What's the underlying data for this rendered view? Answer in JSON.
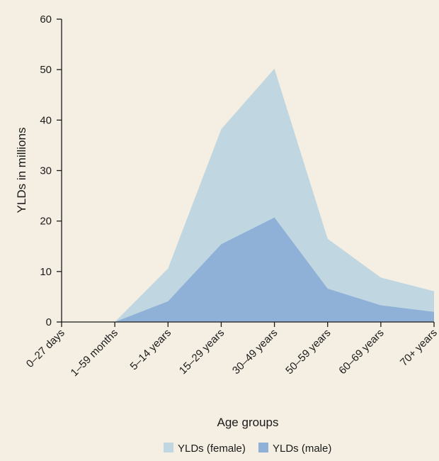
{
  "chart_data": {
    "type": "area",
    "stacked": false,
    "xlabel": "Age groups",
    "ylabel": "YLDs in millions",
    "ylim": [
      0,
      60
    ],
    "yticks": [
      0,
      10,
      20,
      30,
      40,
      50,
      60
    ],
    "categories": [
      "0–27 days",
      "1–59 months",
      "5–14 years",
      "15–29 years",
      "30–49 years",
      "50–59 years",
      "60–69 years",
      "70+ years"
    ],
    "series": [
      {
        "name": "YLDs (female)",
        "color": "#c0d6e0",
        "values": [
          0,
          0,
          10.6,
          38.2,
          50.2,
          16.5,
          8.8,
          6.1
        ]
      },
      {
        "name": "YLDs (male)",
        "color": "#8fb1d7",
        "values": [
          0,
          0,
          4.1,
          15.4,
          20.7,
          6.6,
          3.3,
          2.0
        ]
      }
    ],
    "legend": "bottom-center",
    "grid": false
  }
}
